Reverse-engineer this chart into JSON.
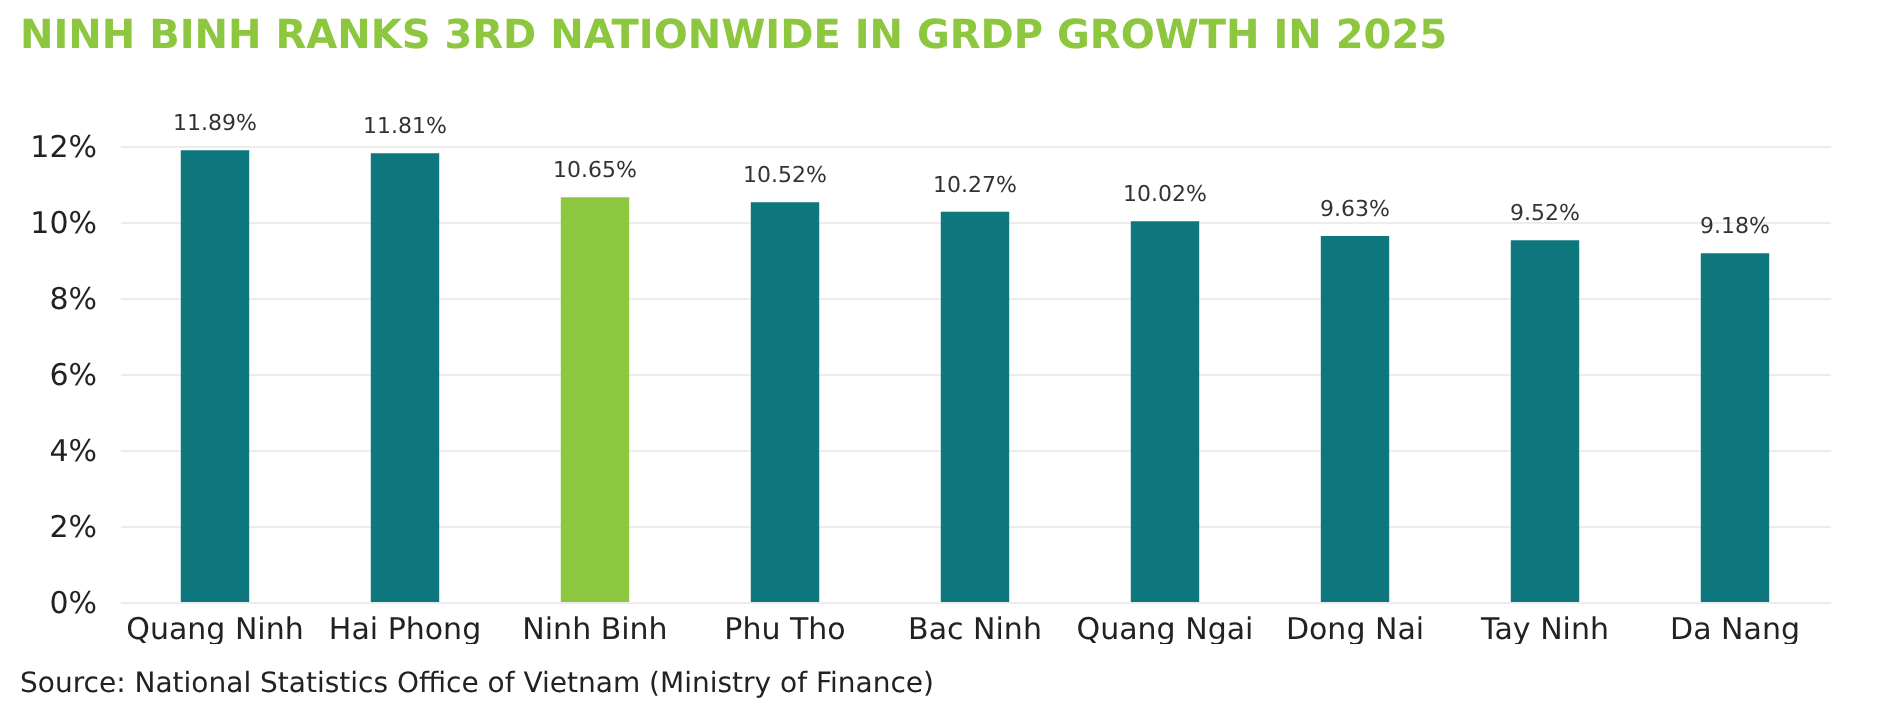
{
  "chart_data": {
    "type": "bar",
    "title": "NINH BINH RANKS 3RD NATIONWIDE IN GRDP GROWTH IN 2025",
    "categories": [
      "Quang Ninh",
      "Hai Phong",
      "Ninh Binh",
      "Phu Tho",
      "Bac Ninh",
      "Quang Ngai",
      "Dong Nai",
      "Tay Ninh",
      "Da Nang"
    ],
    "values": [
      11.89,
      11.81,
      10.65,
      10.52,
      10.27,
      10.02,
      9.63,
      9.52,
      9.18
    ],
    "colors": [
      "#0e777d",
      "#0e777d",
      "#8dc63f",
      "#0e777d",
      "#0e777d",
      "#0e777d",
      "#0e777d",
      "#0e777d",
      "#0e777d"
    ],
    "value_labels": [
      "11.89%",
      "11.81%",
      "10.65%",
      "10.52%",
      "10.27%",
      "10.02%",
      "9.63%",
      "9.52%",
      "9.18%"
    ],
    "ylim": [
      0,
      12
    ],
    "yticks": [
      {
        "value": 0,
        "label": "0%"
      },
      {
        "value": 2,
        "label": "2%"
      },
      {
        "value": 4,
        "label": "4%"
      },
      {
        "value": 6,
        "label": "6%"
      },
      {
        "value": 8,
        "label": "8%"
      },
      {
        "value": 10,
        "label": "10%"
      },
      {
        "value": 12,
        "label": "12%"
      }
    ],
    "grid": "y",
    "annotations": [
      "Source: National Statistics Office of Vietnam (Ministry of Finance)"
    ]
  }
}
